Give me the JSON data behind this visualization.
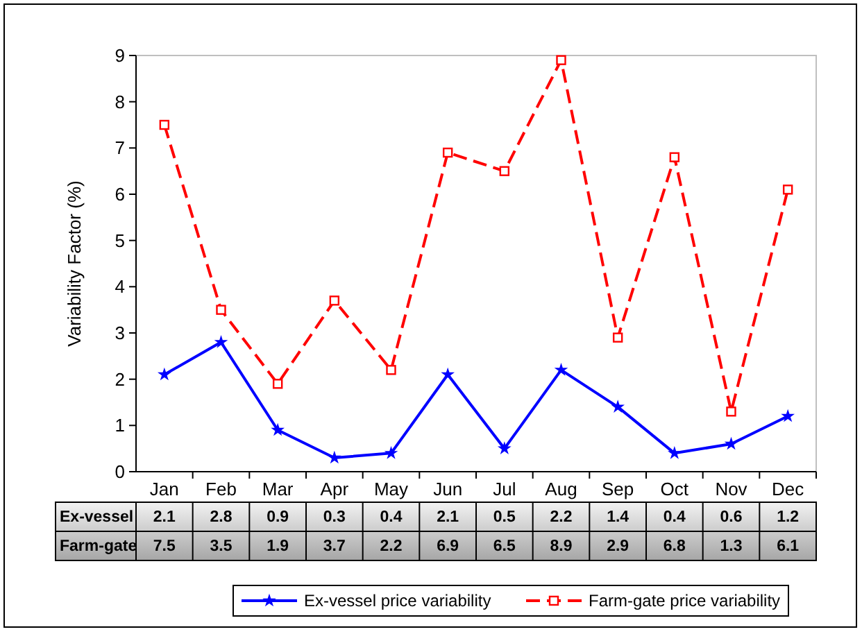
{
  "chart_data": {
    "type": "line",
    "ylabel": "Variability Factor (%)",
    "categories": [
      "Jan",
      "Feb",
      "Mar",
      "Apr",
      "May",
      "Jun",
      "Jul",
      "Aug",
      "Sep",
      "Oct",
      "Nov",
      "Dec"
    ],
    "series": [
      {
        "name": "Ex-vessel price variability",
        "color": "#0000ff",
        "marker": "star",
        "line_style": "solid",
        "values": [
          2.1,
          2.8,
          0.9,
          0.3,
          0.4,
          2.1,
          0.5,
          2.2,
          1.4,
          0.4,
          0.6,
          1.2
        ]
      },
      {
        "name": "Farm-gate price variability",
        "color": "#ff0000",
        "marker": "square",
        "line_style": "dashed",
        "values": [
          7.5,
          3.5,
          1.9,
          3.7,
          2.2,
          6.9,
          6.5,
          8.9,
          2.9,
          6.8,
          1.3,
          6.1
        ]
      }
    ],
    "ylim": [
      0,
      9
    ],
    "yticks": [
      0,
      1,
      2,
      3,
      4,
      5,
      6,
      7,
      8,
      9
    ],
    "grid": false,
    "legend": "bottom",
    "data_labels": true,
    "annotations": [
      "Ex-vessel",
      "Farm-gate"
    ]
  }
}
